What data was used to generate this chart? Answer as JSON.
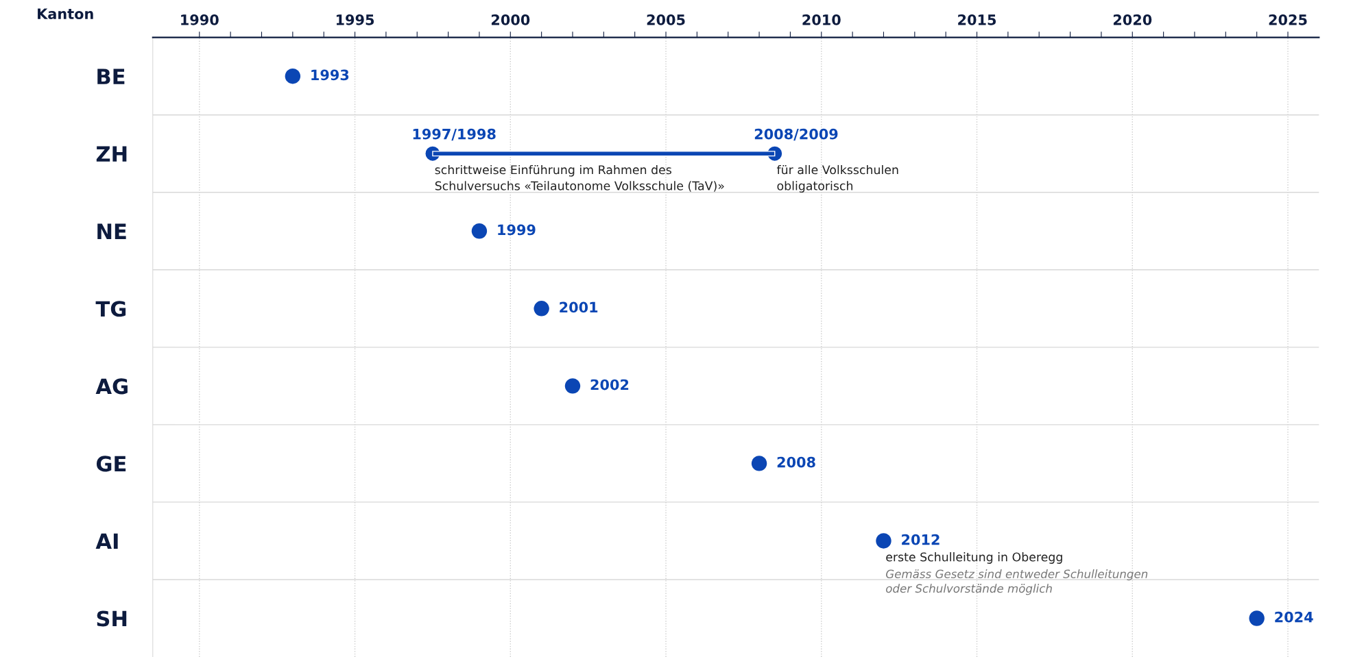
{
  "chart_data": {
    "type": "scatter",
    "orientation": "horizontal",
    "ylabel": "Kanton",
    "categories": [
      "BE",
      "ZH",
      "NE",
      "TG",
      "AG",
      "GE",
      "AI",
      "SH"
    ],
    "series": [
      {
        "type": "bar",
        "color": "#0b46b4",
        "base": [
          null,
          1997.5,
          null,
          null,
          null,
          null,
          null,
          null
        ],
        "values": [
          null,
          11,
          null,
          null,
          null,
          null,
          null,
          null
        ]
      },
      {
        "color": "#0b46b4",
        "values": [
          1993,
          null,
          1999,
          2001,
          2002,
          2008,
          2012,
          2024
        ],
        "value_labels": [
          "1993",
          null,
          "1999",
          "2001",
          "2002",
          "2008",
          "2012",
          "2024"
        ]
      }
    ],
    "annotations": [
      {
        "text": "1997/1998",
        "x": 1997.5,
        "y": "ZH"
      },
      {
        "text": "schrittweise Einführung im Rahmen des\nSchulversuchs «Teilautonome Volksschule (TaV)»",
        "x": 1997.5,
        "y": "ZH"
      },
      {
        "text": "2008/2009",
        "x": 2008.5,
        "y": "ZH"
      },
      {
        "text": "für alle Volksschulen\nobligatorisch",
        "x": 2008.5,
        "y": "ZH"
      },
      {
        "text": "erste Schulleitung in Oberegg",
        "x": 2012,
        "y": "AI"
      },
      {
        "text": "Gemäss Gesetz sind entweder Schulleitungen\noder Schulvorstände möglich",
        "x": 2012,
        "y": "AI"
      }
    ],
    "xlim": [
      1988.5,
      2026
    ],
    "xticks": [
      1990,
      {
        "value": 1991,
        "label": null
      },
      {
        "value": 1992,
        "label": null
      },
      {
        "value": 1993,
        "label": null
      },
      {
        "value": 1994,
        "label": null
      },
      1995,
      {
        "value": 1996,
        "label": null
      },
      {
        "value": 1997,
        "label": null
      },
      {
        "value": 1998,
        "label": null
      },
      {
        "value": 1999,
        "label": null
      },
      2000,
      {
        "value": 2001,
        "label": null
      },
      {
        "value": 2002,
        "label": null
      },
      {
        "value": 2003,
        "label": null
      },
      {
        "value": 2004,
        "label": null
      },
      2005,
      {
        "value": 2006,
        "label": null
      },
      {
        "value": 2007,
        "label": null
      },
      {
        "value": 2008,
        "label": null
      },
      {
        "value": 2009,
        "label": null
      },
      2010,
      {
        "value": 2011,
        "label": null
      },
      {
        "value": 2012,
        "label": null
      },
      {
        "value": 2013,
        "label": null
      },
      {
        "value": 2014,
        "label": null
      },
      2015,
      {
        "value": 2016,
        "label": null
      },
      {
        "value": 2017,
        "label": null
      },
      {
        "value": 2018,
        "label": null
      },
      {
        "value": 2019,
        "label": null
      },
      2020,
      {
        "value": 2021,
        "label": null
      },
      {
        "value": 2022,
        "label": null
      },
      {
        "value": 2023,
        "label": null
      },
      {
        "value": 2024,
        "label": null
      },
      2025
    ],
    "grid": true,
    "legend": false,
    "marker": "circle"
  }
}
